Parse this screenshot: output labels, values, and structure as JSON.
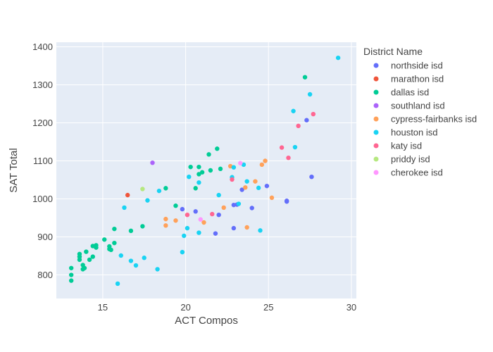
{
  "chart_data": {
    "type": "scatter",
    "xlabel": "ACT Compos",
    "ylabel": "SAT Total",
    "xlim": [
      12.2,
      30.3
    ],
    "ylim": [
      738,
      1412
    ],
    "xticks": [
      15,
      20,
      25,
      30
    ],
    "yticks": [
      800,
      900,
      1000,
      1100,
      1200,
      1300,
      1400
    ],
    "grid": true,
    "plot_background": "#e5ecf6",
    "legend_title": "District Name",
    "legend_position": "right",
    "series": [
      {
        "name": "northside isd",
        "color": "#636efa",
        "points": [
          [
            19.8,
            973
          ],
          [
            20.6,
            967
          ],
          [
            22.0,
            958
          ],
          [
            21.8,
            909
          ],
          [
            22.9,
            984
          ],
          [
            22.9,
            923
          ],
          [
            23.1,
            985
          ],
          [
            23.4,
            1024
          ],
          [
            24.0,
            976
          ],
          [
            24.9,
            1034
          ],
          [
            26.1,
            993
          ],
          [
            26.1,
            995
          ],
          [
            27.3,
            1207
          ],
          [
            27.6,
            1058
          ]
        ]
      },
      {
        "name": "marathon isd",
        "color": "#ef553b",
        "points": [
          [
            16.5,
            1010
          ]
        ]
      },
      {
        "name": "dallas isd",
        "color": "#00cc96",
        "points": [
          [
            13.1,
            785
          ],
          [
            13.1,
            800
          ],
          [
            13.1,
            818
          ],
          [
            13.6,
            840
          ],
          [
            13.6,
            848
          ],
          [
            13.6,
            855
          ],
          [
            13.8,
            815
          ],
          [
            13.8,
            826
          ],
          [
            13.9,
            818
          ],
          [
            14.0,
            861
          ],
          [
            14.2,
            840
          ],
          [
            14.4,
            848
          ],
          [
            14.4,
            876
          ],
          [
            14.6,
            872
          ],
          [
            14.6,
            878
          ],
          [
            15.1,
            893
          ],
          [
            15.4,
            868
          ],
          [
            15.4,
            875
          ],
          [
            15.5,
            866
          ],
          [
            15.7,
            884
          ],
          [
            15.7,
            921
          ],
          [
            16.7,
            916
          ],
          [
            17.4,
            928
          ],
          [
            18.8,
            1028
          ],
          [
            19.4,
            982
          ],
          [
            20.3,
            1084
          ],
          [
            20.6,
            1028
          ],
          [
            20.8,
            1084
          ],
          [
            20.8,
            1065
          ],
          [
            21.0,
            1070
          ],
          [
            21.4,
            1117
          ],
          [
            21.5,
            1075
          ],
          [
            21.9,
            1132
          ],
          [
            22.1,
            1079
          ],
          [
            27.2,
            1320
          ]
        ]
      },
      {
        "name": "southland isd",
        "color": "#ab63fa",
        "points": [
          [
            18.0,
            1095
          ]
        ]
      },
      {
        "name": "cypress-fairbanks isd",
        "color": "#ffa15a",
        "points": [
          [
            18.8,
            947
          ],
          [
            18.8,
            930
          ],
          [
            19.4,
            943
          ],
          [
            21.1,
            938
          ],
          [
            22.3,
            977
          ],
          [
            22.7,
            1086
          ],
          [
            23.6,
            1030
          ],
          [
            23.7,
            925
          ],
          [
            24.2,
            1046
          ],
          [
            24.6,
            1090
          ],
          [
            24.8,
            1100
          ],
          [
            25.2,
            1003
          ]
        ]
      },
      {
        "name": "houston isd",
        "color": "#19d3f3",
        "points": [
          [
            15.9,
            777
          ],
          [
            16.1,
            851
          ],
          [
            16.3,
            977
          ],
          [
            16.7,
            837
          ],
          [
            17.0,
            825
          ],
          [
            17.5,
            845
          ],
          [
            17.7,
            996
          ],
          [
            18.3,
            815
          ],
          [
            18.4,
            1021
          ],
          [
            19.8,
            860
          ],
          [
            19.9,
            903
          ],
          [
            20.1,
            923
          ],
          [
            20.2,
            1058
          ],
          [
            20.8,
            1043
          ],
          [
            20.8,
            911
          ],
          [
            22.0,
            1010
          ],
          [
            22.8,
            1057
          ],
          [
            22.9,
            1083
          ],
          [
            23.2,
            987
          ],
          [
            23.5,
            1090
          ],
          [
            23.7,
            1046
          ],
          [
            24.4,
            1029
          ],
          [
            24.5,
            917
          ],
          [
            26.5,
            1231
          ],
          [
            26.6,
            1136
          ],
          [
            27.5,
            1275
          ],
          [
            29.2,
            1371
          ]
        ]
      },
      {
        "name": "katy isd",
        "color": "#ff6692",
        "points": [
          [
            20.1,
            958
          ],
          [
            21.6,
            960
          ],
          [
            22.8,
            1051
          ],
          [
            25.8,
            1135
          ],
          [
            26.2,
            1108
          ],
          [
            26.8,
            1192
          ],
          [
            27.7,
            1223
          ]
        ]
      },
      {
        "name": "priddy isd",
        "color": "#b6e880",
        "points": [
          [
            17.4,
            1026
          ]
        ]
      },
      {
        "name": "cherokee isd",
        "color": "#ff97ff",
        "points": [
          [
            20.9,
            946
          ],
          [
            23.3,
            1094
          ]
        ]
      }
    ]
  }
}
